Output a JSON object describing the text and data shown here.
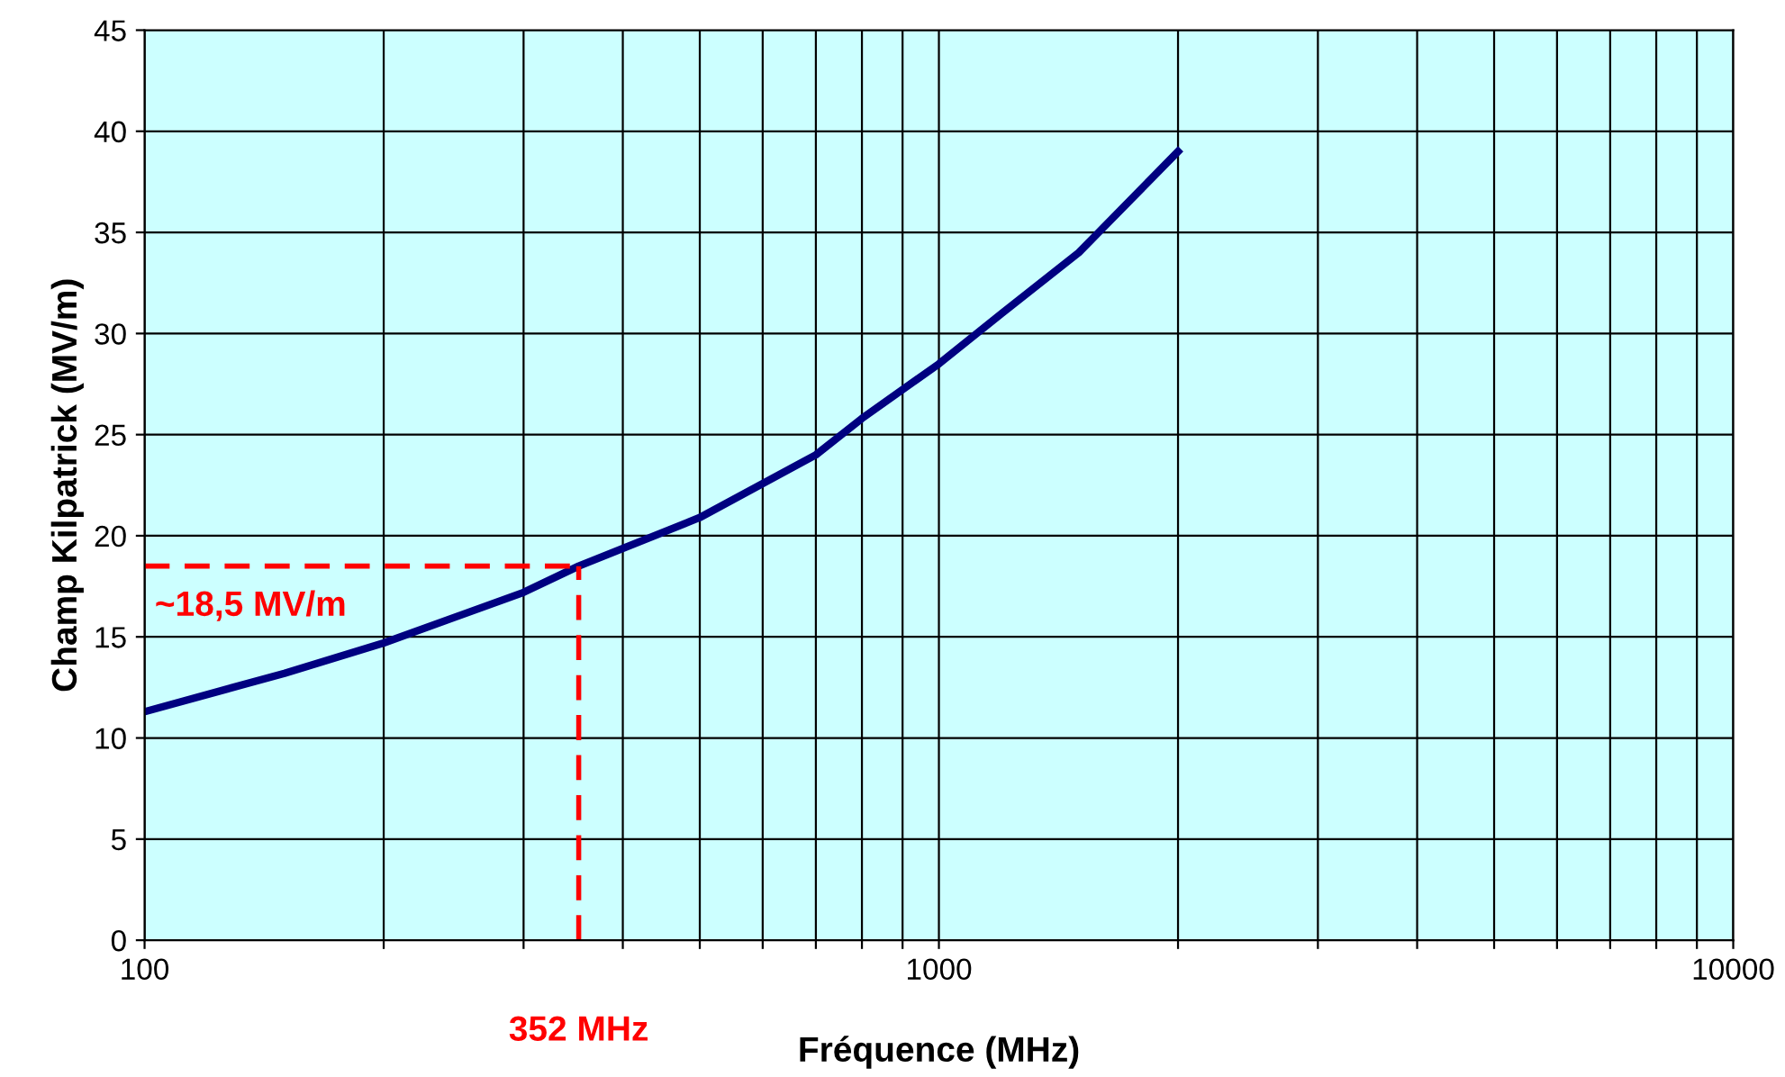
{
  "chart_data": {
    "type": "line",
    "xlabel": "Fréquence (MHz)",
    "ylabel": "Champ Kilpatrick (MV/m)",
    "log": "x",
    "series": [
      {
        "color": "#000080",
        "x": [
          100,
          150,
          200,
          300,
          352,
          500,
          700,
          800,
          1000,
          1200,
          1500,
          2000
        ],
        "values": [
          11.3,
          13.2,
          14.7,
          17.2,
          18.5,
          20.9,
          24,
          25.8,
          28.5,
          31,
          34,
          39
        ]
      }
    ],
    "xlim": [
      100,
      10000
    ],
    "ylim": [
      0,
      45
    ],
    "xticks": [
      100,
      {
        "value": 200,
        "label": null
      },
      {
        "value": 300,
        "label": null
      },
      {
        "value": 400,
        "label": null
      },
      {
        "value": 500,
        "label": null
      },
      {
        "value": 600,
        "label": null
      },
      {
        "value": 700,
        "label": null
      },
      {
        "value": 800,
        "label": null
      },
      {
        "value": 900,
        "label": null
      },
      1000,
      {
        "value": 2000,
        "label": null
      },
      {
        "value": 3000,
        "label": null
      },
      {
        "value": 4000,
        "label": null
      },
      {
        "value": 5000,
        "label": null
      },
      {
        "value": 6000,
        "label": null
      },
      {
        "value": 7000,
        "label": null
      },
      {
        "value": 8000,
        "label": null
      },
      {
        "value": 9000,
        "label": null
      },
      10000
    ],
    "yticks": [
      0,
      5,
      10,
      15,
      20,
      25,
      30,
      35,
      40,
      45
    ],
    "grid": true,
    "line_style": "solid",
    "marker": "none",
    "ref_lines": [
      {
        "axis": "y",
        "value": 18.5,
        "label": "~18,5 MV/m",
        "color": "#ff0000",
        "line_style": "dashed"
      },
      {
        "axis": "x",
        "value": 352,
        "label": "352 MHz",
        "color": "#ff0000",
        "line_style": "dashed"
      }
    ]
  }
}
